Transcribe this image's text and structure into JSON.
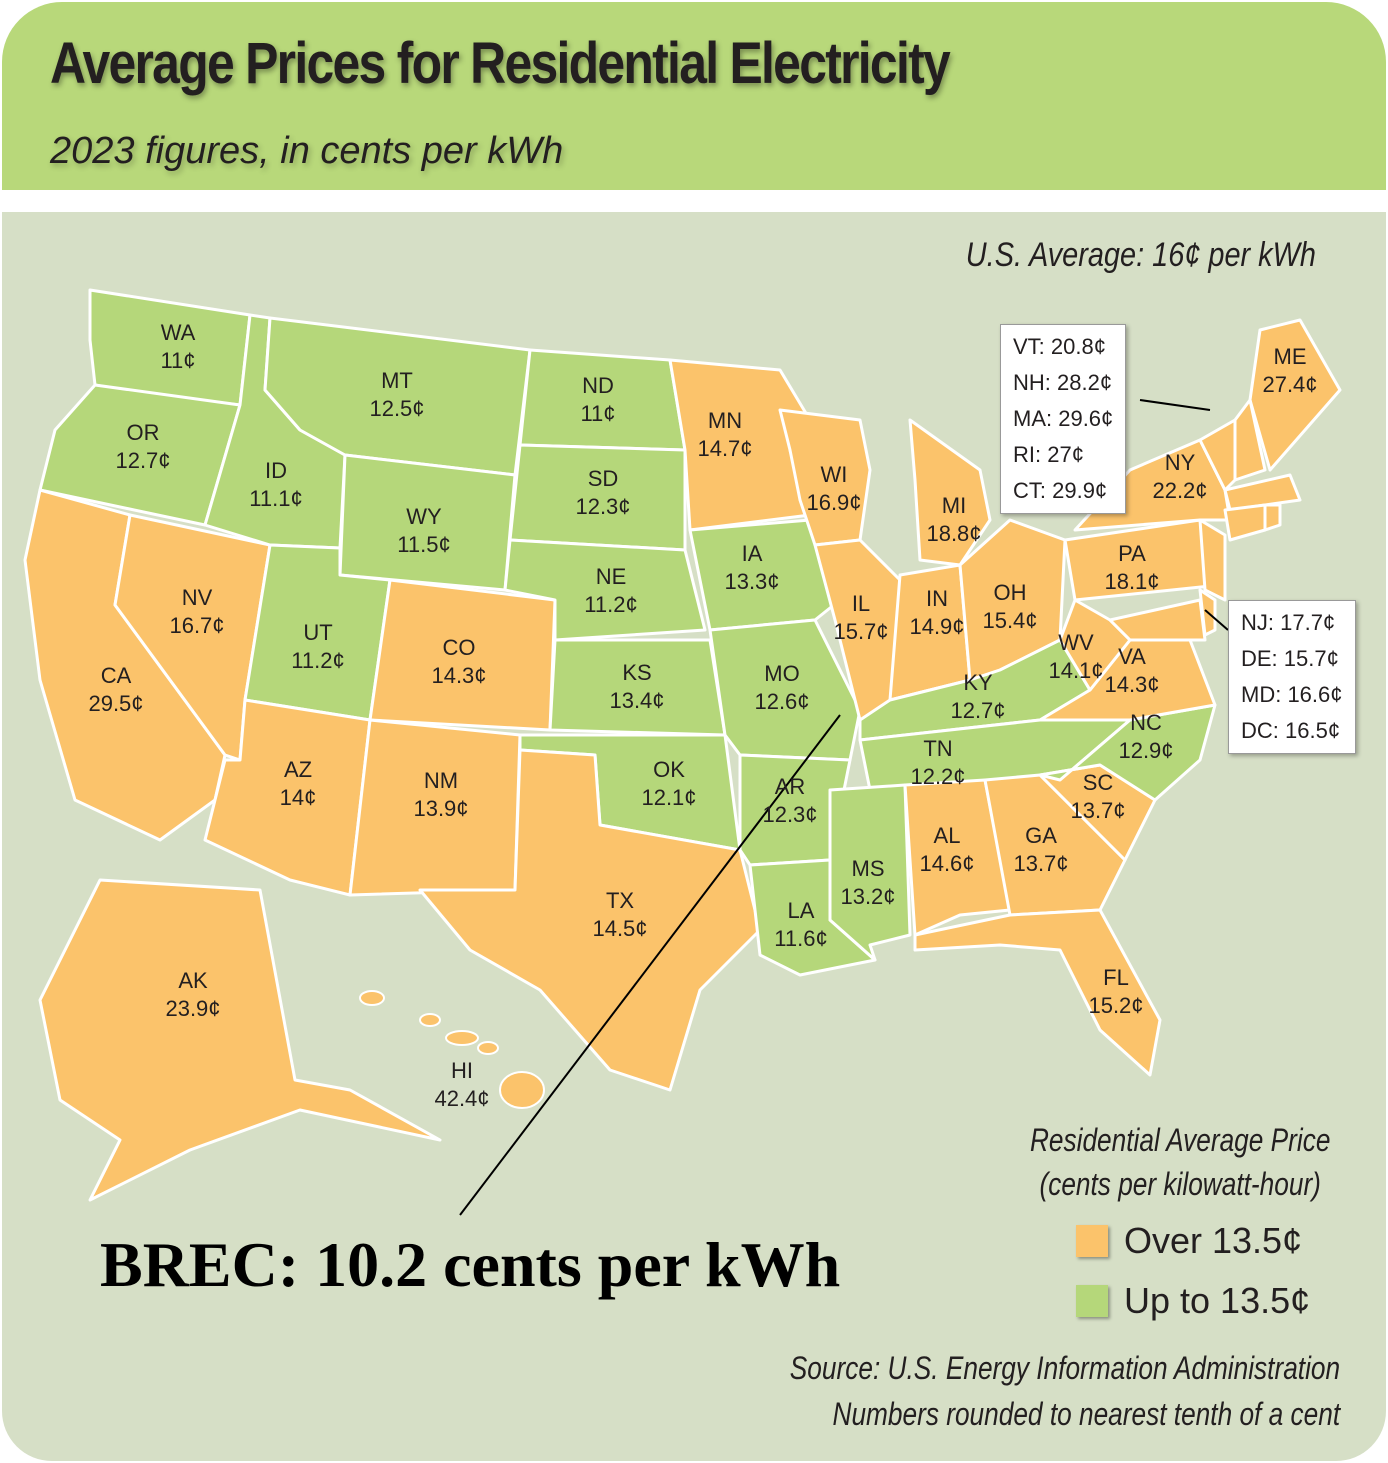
{
  "header": {
    "title": "Average Prices for Residential Electricity",
    "subtitle": "2023 figures, in cents per kWh"
  },
  "us_average": "U.S. Average: 16¢ per kWh",
  "colors": {
    "over": "#fbc36b",
    "upto": "#b5d77a",
    "header": "#b8d87a",
    "background": "#d6dfc6",
    "border": "#ffffff"
  },
  "states": [
    {
      "abbr": "WA",
      "price": "11¢",
      "category": "upto"
    },
    {
      "abbr": "OR",
      "price": "12.7¢",
      "category": "upto"
    },
    {
      "abbr": "CA",
      "price": "29.5¢",
      "category": "over"
    },
    {
      "abbr": "NV",
      "price": "16.7¢",
      "category": "over"
    },
    {
      "abbr": "ID",
      "price": "11.1¢",
      "category": "upto"
    },
    {
      "abbr": "MT",
      "price": "12.5¢",
      "category": "upto"
    },
    {
      "abbr": "WY",
      "price": "11.5¢",
      "category": "upto"
    },
    {
      "abbr": "UT",
      "price": "11.2¢",
      "category": "upto"
    },
    {
      "abbr": "CO",
      "price": "14.3¢",
      "category": "over"
    },
    {
      "abbr": "AZ",
      "price": "14¢",
      "category": "over"
    },
    {
      "abbr": "NM",
      "price": "13.9¢",
      "category": "over"
    },
    {
      "abbr": "ND",
      "price": "11¢",
      "category": "upto"
    },
    {
      "abbr": "SD",
      "price": "12.3¢",
      "category": "upto"
    },
    {
      "abbr": "NE",
      "price": "11.2¢",
      "category": "upto"
    },
    {
      "abbr": "KS",
      "price": "13.4¢",
      "category": "upto"
    },
    {
      "abbr": "OK",
      "price": "12.1¢",
      "category": "upto"
    },
    {
      "abbr": "TX",
      "price": "14.5¢",
      "category": "over"
    },
    {
      "abbr": "MN",
      "price": "14.7¢",
      "category": "over"
    },
    {
      "abbr": "IA",
      "price": "13.3¢",
      "category": "upto"
    },
    {
      "abbr": "MO",
      "price": "12.6¢",
      "category": "upto"
    },
    {
      "abbr": "AR",
      "price": "12.3¢",
      "category": "upto"
    },
    {
      "abbr": "LA",
      "price": "11.6¢",
      "category": "upto"
    },
    {
      "abbr": "WI",
      "price": "16.9¢",
      "category": "over"
    },
    {
      "abbr": "IL",
      "price": "15.7¢",
      "category": "over"
    },
    {
      "abbr": "MI",
      "price": "18.8¢",
      "category": "over"
    },
    {
      "abbr": "IN",
      "price": "14.9¢",
      "category": "over"
    },
    {
      "abbr": "OH",
      "price": "15.4¢",
      "category": "over"
    },
    {
      "abbr": "KY",
      "price": "12.7¢",
      "category": "upto"
    },
    {
      "abbr": "TN",
      "price": "12.2¢",
      "category": "upto"
    },
    {
      "abbr": "MS",
      "price": "13.2¢",
      "category": "upto"
    },
    {
      "abbr": "AL",
      "price": "14.6¢",
      "category": "over"
    },
    {
      "abbr": "GA",
      "price": "13.7¢",
      "category": "over"
    },
    {
      "abbr": "FL",
      "price": "15.2¢",
      "category": "over"
    },
    {
      "abbr": "SC",
      "price": "13.7¢",
      "category": "over"
    },
    {
      "abbr": "NC",
      "price": "12.9¢",
      "category": "upto"
    },
    {
      "abbr": "VA",
      "price": "14.3¢",
      "category": "over"
    },
    {
      "abbr": "WV",
      "price": "14.1¢",
      "category": "over"
    },
    {
      "abbr": "PA",
      "price": "18.1¢",
      "category": "over"
    },
    {
      "abbr": "NY",
      "price": "22.2¢",
      "category": "over"
    },
    {
      "abbr": "ME",
      "price": "27.4¢",
      "category": "over"
    },
    {
      "abbr": "VT",
      "price": "20.8¢",
      "category": "over"
    },
    {
      "abbr": "NH",
      "price": "28.2¢",
      "category": "over"
    },
    {
      "abbr": "MA",
      "price": "29.6¢",
      "category": "over"
    },
    {
      "abbr": "RI",
      "price": "27¢",
      "category": "over"
    },
    {
      "abbr": "CT",
      "price": "29.9¢",
      "category": "over"
    },
    {
      "abbr": "NJ",
      "price": "17.7¢",
      "category": "over"
    },
    {
      "abbr": "DE",
      "price": "15.7¢",
      "category": "over"
    },
    {
      "abbr": "MD",
      "price": "16.6¢",
      "category": "over"
    },
    {
      "abbr": "DC",
      "price": "16.5¢",
      "category": "over"
    },
    {
      "abbr": "AK",
      "price": "23.9¢",
      "category": "over"
    },
    {
      "abbr": "HI",
      "price": "42.4¢",
      "category": "over"
    }
  ],
  "callouts": {
    "new_england": [
      "VT: 20.8¢",
      "NH: 28.2¢",
      "MA: 29.6¢",
      "RI: 27¢",
      "CT: 29.9¢"
    ],
    "mid_atlantic": [
      "NJ: 17.7¢",
      "DE: 15.7¢",
      "MD: 16.6¢",
      "DC: 16.5¢"
    ]
  },
  "brec": "BREC: 10.2 cents per kWh",
  "legend": {
    "title_line1": "Residential Average Price",
    "title_line2": "(cents per kilowatt-hour)",
    "items": [
      {
        "label": "Over 13.5¢",
        "category": "over"
      },
      {
        "label": "Up to 13.5¢",
        "category": "upto"
      }
    ]
  },
  "source": {
    "line1": "Source: U.S. Energy Information Administration",
    "line2": "Numbers rounded to nearest tenth of a cent"
  }
}
